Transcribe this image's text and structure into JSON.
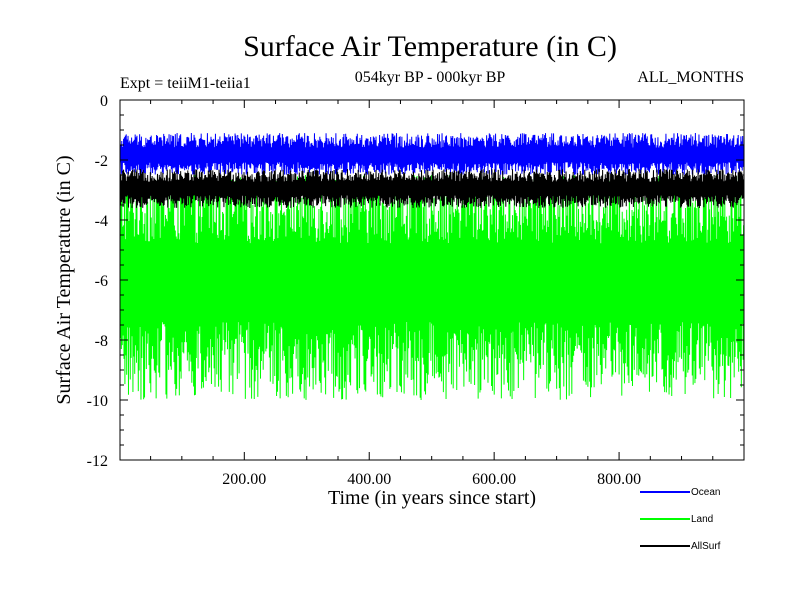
{
  "chart_data": {
    "type": "line",
    "title": "Surface Air Temperature (in C)",
    "subtitle_left": "Expt = teiiM1-teiia1",
    "subtitle_center": "054kyr BP - 000kyr BP",
    "subtitle_right": "ALL_MONTHS",
    "xlabel": "Time (in years since start)",
    "ylabel": "Surface Air Temperature (in C)",
    "xlim": [
      1,
      1000
    ],
    "ylim": [
      -12,
      0
    ],
    "x_ticks": [
      200,
      400,
      600,
      800
    ],
    "x_tick_labels": [
      "200.00",
      "400.00",
      "600.00",
      "800.00"
    ],
    "y_ticks": [
      0,
      -2,
      -4,
      -6,
      -8,
      -10,
      -12
    ],
    "y_tick_labels": [
      "0",
      "-2",
      "-4",
      "-6",
      "-8",
      "-10",
      "-12"
    ],
    "legend_position": "bottom-right, below plot",
    "series": [
      {
        "name": "Ocean",
        "color": "#0000ff",
        "mean": -1.85,
        "range": [
          -2.5,
          -1.1
        ]
      },
      {
        "name": "Land",
        "color": "#00ff00",
        "mean": -6.0,
        "range": [
          -10.0,
          -2.5
        ]
      },
      {
        "name": "AllSurf",
        "color": "#000000",
        "mean": -2.95,
        "range": [
          -3.6,
          -2.3
        ]
      }
    ]
  }
}
